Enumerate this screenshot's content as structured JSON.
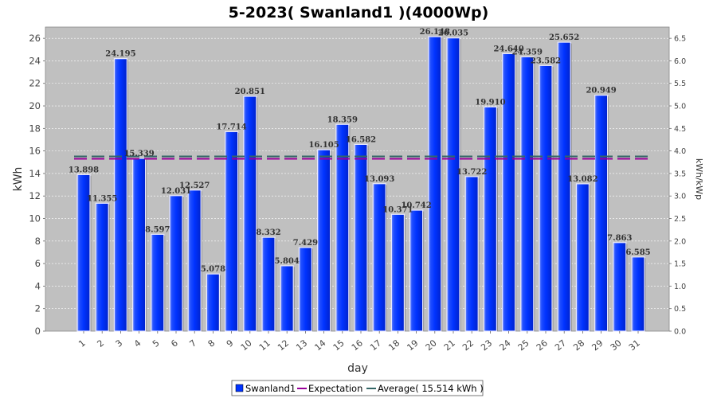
{
  "chart_data": {
    "type": "bar",
    "title": "5-2023( Swanland1 )(4000Wp)",
    "xlabel": "day",
    "ylabel": "kWh",
    "y2label": "kWh/kWp",
    "ylim": [
      0,
      27
    ],
    "y_ticks": [
      0,
      2,
      4,
      6,
      8,
      10,
      12,
      14,
      16,
      18,
      20,
      22,
      24,
      26
    ],
    "y2lim": [
      0,
      6.75
    ],
    "y2_ticks": [
      "0.0",
      "0.5",
      "1.0",
      "1.5",
      "2.0",
      "2.5",
      "3.0",
      "3.5",
      "4.0",
      "4.5",
      "5.0",
      "5.5",
      "6.0",
      "6.5"
    ],
    "grid": true,
    "categories": [
      "1",
      "2",
      "3",
      "4",
      "5",
      "6",
      "7",
      "8",
      "9",
      "10",
      "11",
      "12",
      "13",
      "14",
      "15",
      "16",
      "17",
      "18",
      "19",
      "20",
      "21",
      "22",
      "23",
      "24",
      "25",
      "26",
      "27",
      "28",
      "29",
      "30",
      "31"
    ],
    "series": [
      {
        "name": "Swanland1",
        "color": "#0033ff",
        "values": [
          13.898,
          11.355,
          24.195,
          15.339,
          8.597,
          12.031,
          12.527,
          5.078,
          17.714,
          20.851,
          8.332,
          5.804,
          7.429,
          16.105,
          18.359,
          16.582,
          13.093,
          10.371,
          10.742,
          26.148,
          26.035,
          13.722,
          19.91,
          24.64,
          24.359,
          23.582,
          25.652,
          13.082,
          20.949,
          7.863,
          6.585
        ],
        "labels": [
          "13.898",
          "11.355",
          "24.195",
          "15.339",
          "8.597",
          "12.031",
          "12.527",
          "5.078",
          "17.714",
          "20.851",
          "8.332",
          "5.804",
          "7.429",
          "16.105",
          "18.359",
          "16.582",
          "13.093",
          "10.371",
          "10.742",
          "26.148",
          "26.035",
          "13.722",
          "19.910",
          "24.640",
          "24.359",
          "23.582",
          "25.652",
          "13.082",
          "20.949",
          "7.863",
          "6.585"
        ]
      }
    ],
    "expectation": {
      "name": "Expectation",
      "value": 15.3,
      "color": "#990099"
    },
    "average": {
      "name": "Average( 15.514 kWh )",
      "value": 15.514,
      "color": "#336666"
    },
    "legend_position": "bottom"
  }
}
